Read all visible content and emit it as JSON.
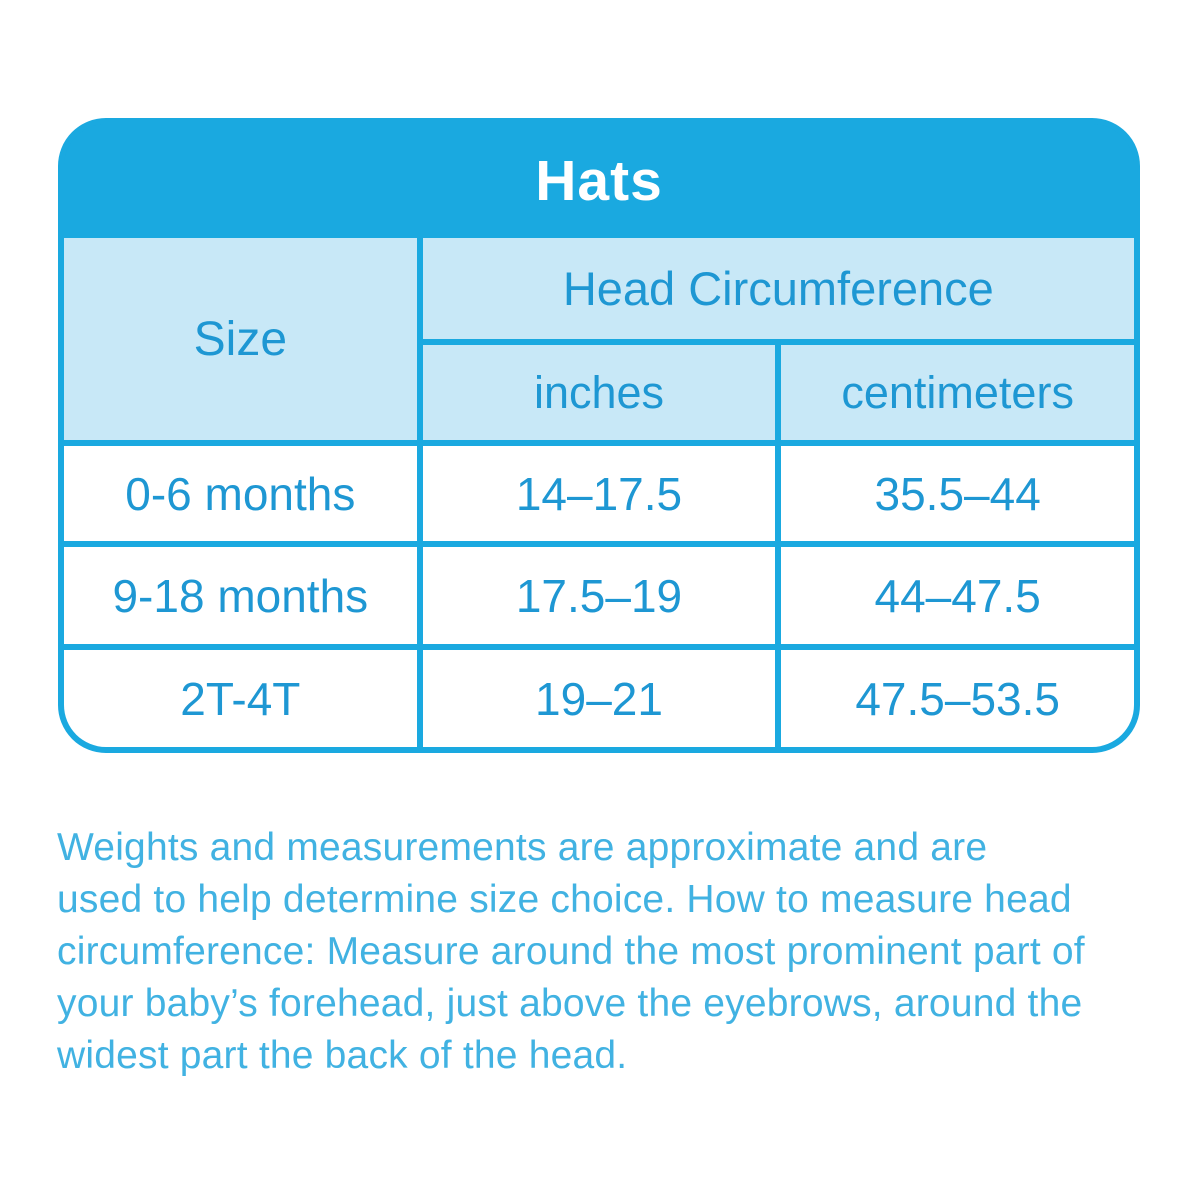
{
  "colors": {
    "brand_blue": "#1aa9e0",
    "light_blue": "#c8e8f7",
    "cell_text_blue": "#1e97d3",
    "note_text_blue": "#41b2e2",
    "title_text": "#ffffff",
    "row_background": "#ffffff"
  },
  "table": {
    "title": "Hats",
    "size_header": "Size",
    "group_header": "Head Circumference",
    "col_headers": [
      "inches",
      "centimeters"
    ],
    "rows": [
      {
        "size": "0-6 months",
        "inches": "14–17.5",
        "centimeters": "35.5–44"
      },
      {
        "size": "9-18 months",
        "inches": "17.5–19",
        "centimeters": "44–47.5"
      },
      {
        "size": "2T-4T",
        "inches": "19–21",
        "centimeters": "47.5–53.5"
      }
    ]
  },
  "note": {
    "full_text": "Weights and measurements are approximate and are used to help determine size choice. How to measure head circumference: Measure around the most prominent part of your baby’s forehead, just above the eyebrows, around the widest part the back of the head.",
    "lines": [
      "Weights and measurements are approximate and are",
      "used to help determine size choice. How to measure head",
      "circumference: Measure around the most prominent part of",
      "your baby’s forehead, just above the eyebrows, around the",
      "widest part the back of the head."
    ]
  },
  "chart_data": {
    "type": "table",
    "title": "Hats",
    "columns": [
      "Size",
      "Head Circumference (inches)",
      "Head Circumference (centimeters)"
    ],
    "rows": [
      [
        "0-6 months",
        "14–17.5",
        "35.5–44"
      ],
      [
        "9-18 months",
        "17.5–19",
        "44–47.5"
      ],
      [
        "2T-4T",
        "19–21",
        "47.5–53.5"
      ]
    ],
    "notes": "Weights and measurements are approximate and are used to help determine size choice. How to measure head circumference: Measure around the most prominent part of your baby’s forehead, just above the eyebrows, around the widest part the back of the head."
  }
}
